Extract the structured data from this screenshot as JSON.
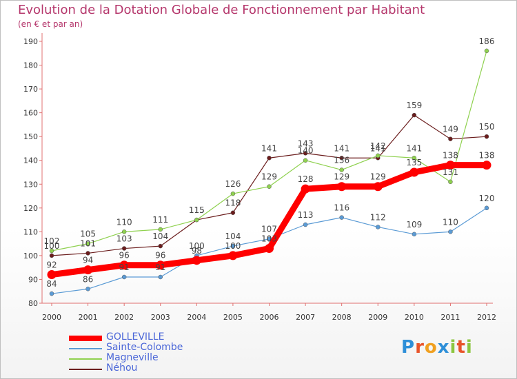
{
  "chart_data": {
    "type": "line",
    "title": "Evolution de la Dotation Globale de Fonctionnement par Habitant",
    "subtitle": "(en € et par an)",
    "categories": [
      "2000",
      "2001",
      "2002",
      "2003",
      "2004",
      "2005",
      "2006",
      "2007",
      "2008",
      "2009",
      "2010",
      "2011",
      "2012"
    ],
    "ylim": [
      80,
      190
    ],
    "yticks": [
      80,
      90,
      100,
      110,
      120,
      130,
      140,
      150,
      160,
      170,
      180,
      190
    ],
    "grid": false,
    "legend_position": "bottom-left",
    "series": [
      {
        "name": "GOLLEVILLE",
        "color": "#ff0000",
        "values": [
          92,
          94,
          96,
          96,
          98,
          100,
          103,
          128,
          129,
          129,
          135,
          138,
          138
        ]
      },
      {
        "name": "Sainte-Colombe",
        "color": "#5b9bd5",
        "values": [
          84,
          86,
          91,
          91,
          100,
          104,
          107,
          113,
          116,
          112,
          109,
          110,
          120
        ]
      },
      {
        "name": "Magneville",
        "color": "#8fd14f",
        "values": [
          102,
          105,
          110,
          111,
          115,
          126,
          129,
          140,
          136,
          142,
          141,
          131,
          186
        ]
      },
      {
        "name": "Néhou",
        "color": "#6b1d1d",
        "values": [
          100,
          101,
          103,
          104,
          115,
          118,
          141,
          143,
          141,
          141,
          159,
          149,
          150
        ]
      }
    ]
  },
  "logo": {
    "letters": [
      "P",
      "r",
      "o",
      "x",
      "i",
      "t",
      "i"
    ],
    "colors": [
      "#2e8fd8",
      "#e8542a",
      "#f0a020",
      "#2e8fd8",
      "#8cc63f",
      "#e8542a",
      "#8cc63f"
    ]
  }
}
